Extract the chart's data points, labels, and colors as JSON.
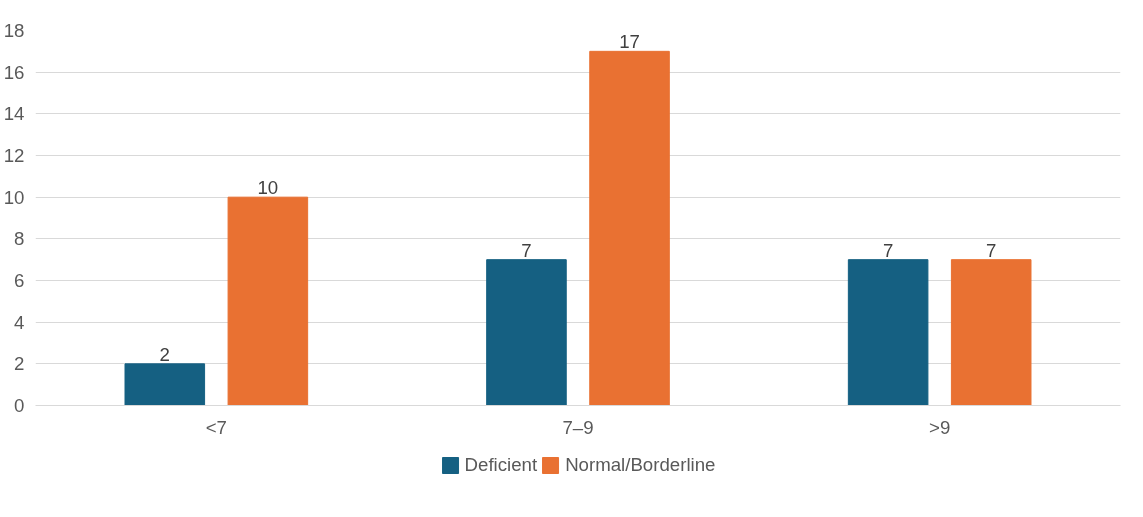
{
  "chart_data": {
    "type": "bar",
    "categories": [
      "<7",
      "7–9",
      ">9"
    ],
    "series": [
      {
        "name": "Deficient",
        "color": "#156082",
        "values": [
          2,
          7,
          7
        ]
      },
      {
        "name": "Normal/Borderline",
        "color": "#e97132",
        "values": [
          10,
          17,
          7
        ]
      }
    ],
    "ylim": [
      0,
      18
    ],
    "yticks": [
      0,
      2,
      4,
      6,
      8,
      10,
      12,
      14,
      16,
      18
    ],
    "grid": "y",
    "legend": "bottom",
    "data_labels": true
  }
}
